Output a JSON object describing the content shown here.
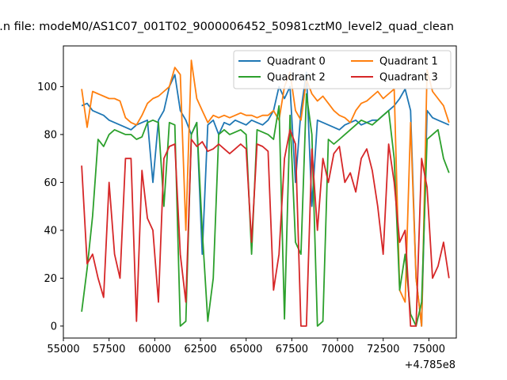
{
  "chart_data": {
    "type": "line",
    "title": "...n file: modeM0/AS1C07_001T02_9000006452_50981cztM0_level2_quad_clean",
    "xlabel": "",
    "ylabel": "",
    "x_offset_label": "+4.785e8",
    "xlim": [
      55000,
      76500
    ],
    "ylim": [
      -5,
      117
    ],
    "xticks": [
      "55000",
      "57500",
      "60000",
      "62500",
      "65000",
      "67500",
      "70000",
      "72500",
      "75000"
    ],
    "xtick_values": [
      55000,
      57500,
      60000,
      62500,
      65000,
      67500,
      70000,
      72500,
      75000
    ],
    "yticks": [
      "0",
      "20",
      "40",
      "60",
      "80",
      "100"
    ],
    "ytick_values": [
      0,
      20,
      40,
      60,
      80,
      100
    ],
    "grid": false,
    "legend_position": "top-right",
    "x": [
      56000,
      56300,
      56600,
      56900,
      57200,
      57500,
      57800,
      58100,
      58400,
      58700,
      59000,
      59300,
      59600,
      59900,
      60200,
      60500,
      60800,
      61100,
      61400,
      61700,
      62000,
      62300,
      62600,
      62900,
      63200,
      63500,
      63800,
      64100,
      64400,
      64700,
      65000,
      65300,
      65600,
      65900,
      66200,
      66500,
      66800,
      67100,
      67400,
      67700,
      68000,
      68300,
      68600,
      68900,
      69200,
      69500,
      69800,
      70100,
      70400,
      70700,
      71000,
      71300,
      71600,
      71900,
      72200,
      72500,
      72800,
      73100,
      73400,
      73700,
      74000,
      74300,
      74600,
      74900,
      75200,
      75500,
      75800,
      76100
    ],
    "series": [
      {
        "name": "Quadrant 0",
        "color": "#1f77b4",
        "values": [
          92,
          93,
          90,
          89,
          88,
          86,
          85,
          84,
          83,
          82,
          84,
          85,
          86,
          60,
          86,
          90,
          100,
          105,
          90,
          86,
          80,
          85,
          30,
          84,
          86,
          80,
          85,
          84,
          86,
          85,
          84,
          86,
          85,
          84,
          86,
          90,
          100,
          95,
          100,
          60,
          90,
          106,
          50,
          86,
          85,
          84,
          83,
          82,
          84,
          85,
          86,
          84,
          85,
          86,
          86,
          88,
          90,
          92,
          95,
          99,
          90,
          20,
          0,
          90,
          87,
          86,
          85,
          84
        ]
      },
      {
        "name": "Quadrant 1",
        "color": "#ff7f0e",
        "values": [
          99,
          83,
          98,
          97,
          96,
          95,
          95,
          94,
          87,
          85,
          84,
          88,
          93,
          95,
          96,
          98,
          100,
          108,
          105,
          40,
          111,
          95,
          90,
          85,
          88,
          87,
          88,
          87,
          88,
          89,
          88,
          88,
          87,
          88,
          88,
          90,
          86,
          100,
          106,
          90,
          86,
          103,
          97,
          94,
          96,
          93,
          90,
          88,
          87,
          85,
          90,
          93,
          94,
          96,
          98,
          95,
          97,
          99,
          15,
          10,
          85,
          20,
          0,
          107,
          98,
          95,
          92,
          85
        ]
      },
      {
        "name": "Quadrant 2",
        "color": "#2ca02c",
        "values": [
          6,
          24,
          46,
          78,
          75,
          80,
          82,
          81,
          80,
          80,
          78,
          79,
          85,
          86,
          85,
          50,
          85,
          84,
          0,
          2,
          80,
          85,
          40,
          2,
          20,
          80,
          82,
          80,
          81,
          82,
          80,
          30,
          82,
          81,
          80,
          78,
          92,
          3,
          88,
          35,
          30,
          97,
          80,
          0,
          2,
          78,
          76,
          78,
          80,
          82,
          84,
          86,
          85,
          84,
          86,
          88,
          90,
          70,
          15,
          30,
          5,
          0,
          10,
          78,
          80,
          82,
          70,
          64
        ]
      },
      {
        "name": "Quadrant 3",
        "color": "#d62728",
        "values": [
          67,
          26,
          30,
          20,
          12,
          60,
          30,
          20,
          70,
          70,
          2,
          65,
          45,
          40,
          10,
          70,
          75,
          76,
          30,
          10,
          78,
          75,
          77,
          73,
          74,
          76,
          74,
          72,
          74,
          76,
          74,
          35,
          76,
          75,
          73,
          15,
          30,
          70,
          82,
          76,
          0,
          0,
          74,
          40,
          70,
          60,
          72,
          75,
          60,
          64,
          56,
          70,
          74,
          65,
          50,
          30,
          76,
          60,
          35,
          40,
          0,
          0,
          70,
          58,
          20,
          25,
          35,
          20
        ]
      }
    ]
  }
}
